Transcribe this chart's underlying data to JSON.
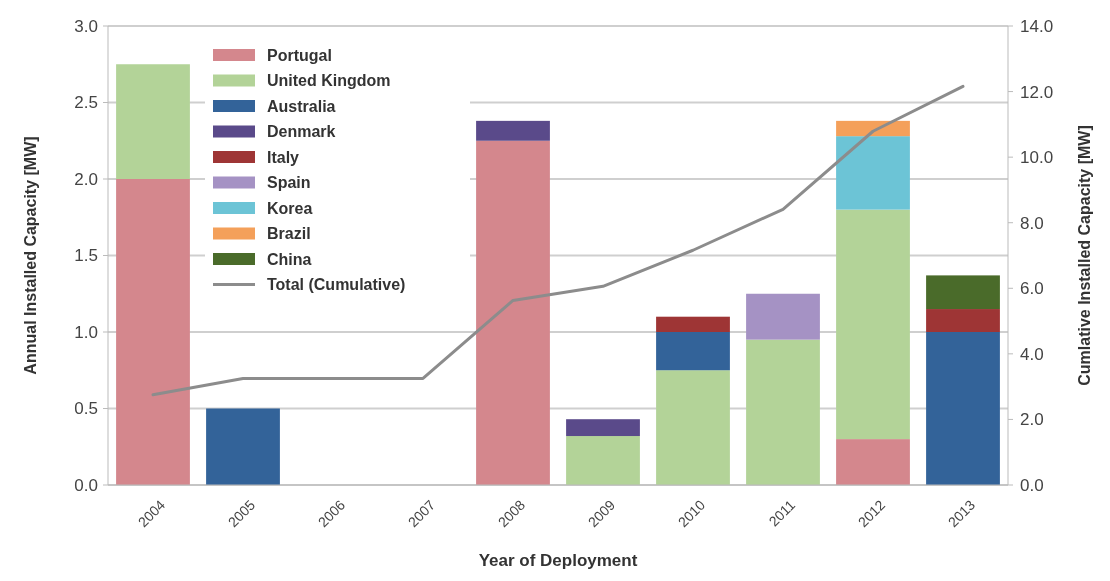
{
  "chart_data": {
    "type": "bar",
    "stacked": true,
    "xlabel": "Year of Deployment",
    "ylabel": "Annual Installed Capacity [MW]",
    "y2label": "Cumlative Installed Capacity [MW]",
    "categories": [
      "2004",
      "2005",
      "2006",
      "2007",
      "2008",
      "2009",
      "2010",
      "2011",
      "2012",
      "2013"
    ],
    "ylim": [
      0,
      3
    ],
    "yticks": [
      {
        "value": 0,
        "label": "0.0"
      },
      {
        "value": 0.5,
        "label": "0.5"
      },
      {
        "value": 1,
        "label": "1.0"
      },
      {
        "value": 1.5,
        "label": "1.5"
      },
      {
        "value": 2,
        "label": "2.0"
      },
      {
        "value": 2.5,
        "label": "2.5"
      },
      {
        "value": 3,
        "label": "3.0"
      }
    ],
    "y2lim": [
      0,
      14
    ],
    "y2ticks": [
      {
        "value": 0,
        "label": "0.0"
      },
      {
        "value": 2,
        "label": "2.0"
      },
      {
        "value": 4,
        "label": "4.0"
      },
      {
        "value": 6,
        "label": "6.0"
      },
      {
        "value": 8,
        "label": "8.0"
      },
      {
        "value": 10,
        "label": "10.0"
      },
      {
        "value": 12,
        "label": "12.0"
      },
      {
        "value": 14,
        "label": "14.0"
      }
    ],
    "grid": "y",
    "legend": "top left",
    "series": [
      {
        "name": "Portugal",
        "color": "#d4878d",
        "values": [
          2.0,
          0,
          0,
          0,
          2.25,
          0,
          0,
          0,
          0.3,
          0
        ]
      },
      {
        "name": "United Kingdom",
        "color": "#b3d398",
        "values": [
          0.75,
          0,
          0,
          0,
          0,
          0.32,
          0.75,
          0.95,
          1.5,
          0
        ]
      },
      {
        "name": "Australia",
        "color": "#336399",
        "values": [
          0,
          0.5,
          0,
          0,
          0,
          0,
          0.25,
          0,
          0,
          1.0
        ]
      },
      {
        "name": "Denmark",
        "color": "#5a4a8a",
        "values": [
          0,
          0,
          0,
          0,
          0.13,
          0.11,
          0,
          0,
          0,
          0
        ]
      },
      {
        "name": "Italy",
        "color": "#9e3535",
        "values": [
          0,
          0,
          0,
          0,
          0,
          0,
          0.1,
          0,
          0,
          0.15
        ]
      },
      {
        "name": "Spain",
        "color": "#a592c4",
        "values": [
          0,
          0,
          0,
          0,
          0,
          0,
          0,
          0.3,
          0,
          0
        ]
      },
      {
        "name": "Korea",
        "color": "#6cc4d6",
        "values": [
          0,
          0,
          0,
          0,
          0,
          0,
          0,
          0,
          0.48,
          0
        ]
      },
      {
        "name": "Brazil",
        "color": "#f4a05a",
        "values": [
          0,
          0,
          0,
          0,
          0,
          0,
          0,
          0,
          0.1,
          0
        ]
      },
      {
        "name": "China",
        "color": "#4a6b2a",
        "values": [
          0,
          0,
          0,
          0,
          0,
          0,
          0,
          0,
          0,
          0.22
        ]
      },
      {
        "name": "Total (Cumulative)",
        "type": "line",
        "axis": "y2",
        "color": "#8c8c8c",
        "values": [
          2.75,
          3.25,
          3.25,
          3.25,
          5.63,
          6.06,
          7.16,
          8.41,
          10.79,
          12.16
        ]
      }
    ]
  }
}
